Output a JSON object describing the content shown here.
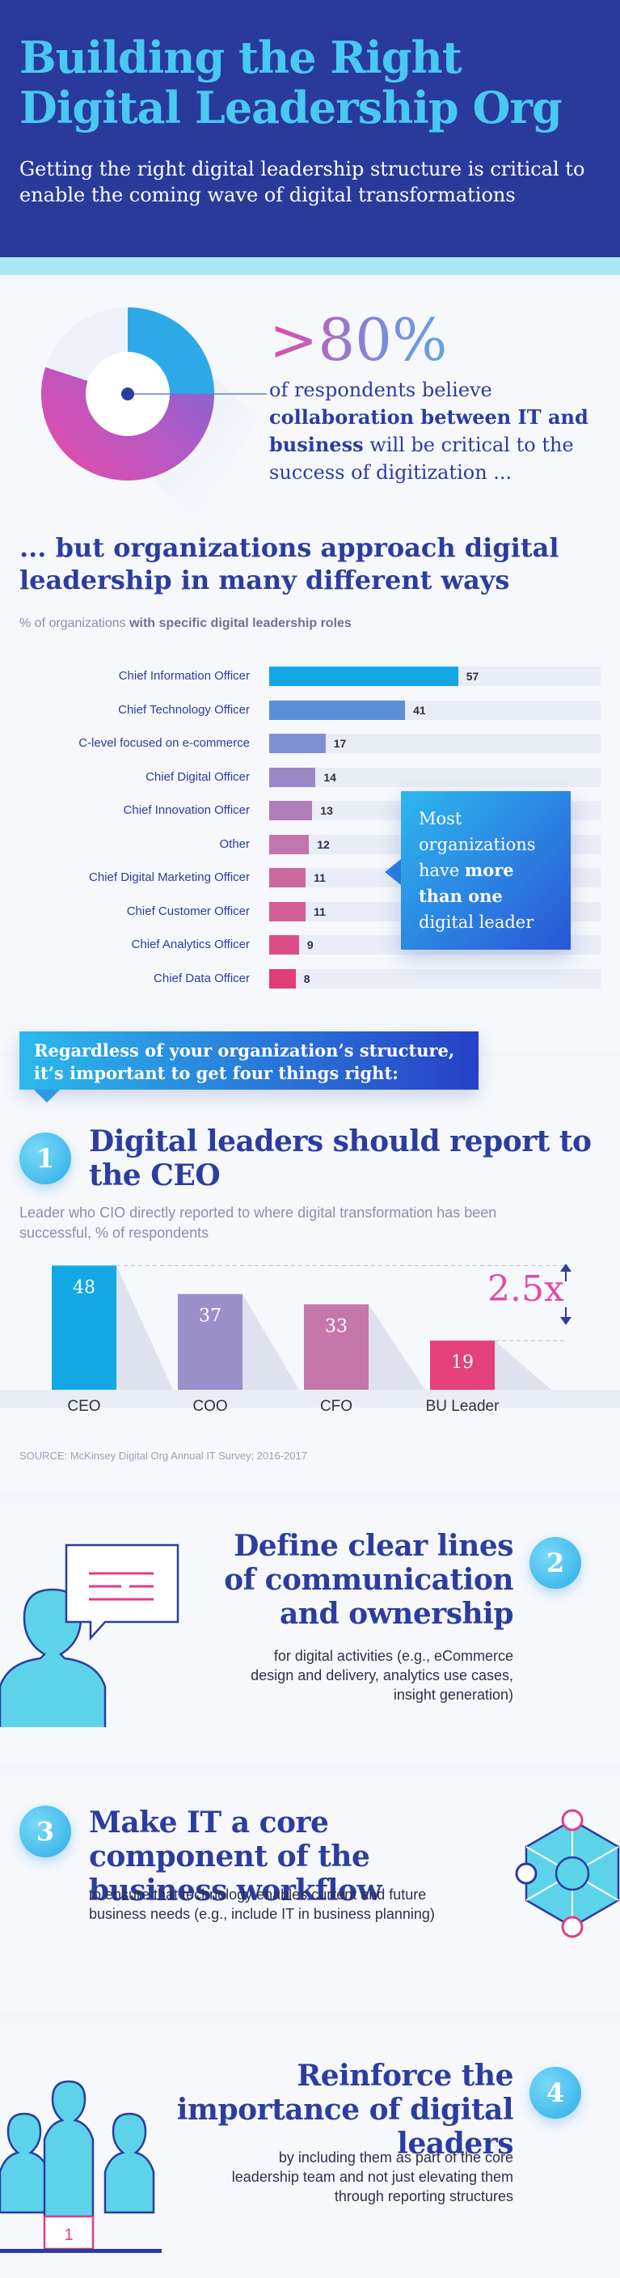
{
  "header": {
    "title_line1": "Building the Right",
    "title_line2": "Digital Leadership Org",
    "subtitle": "Getting the right digital leadership structure is critical to enable the coming wave of digital transformations"
  },
  "stat": {
    "value": ">80%",
    "text_pre": "of respondents believe ",
    "text_bold": "collaboration between IT and business",
    "text_post": " will be critical to the success of digitization ...",
    "donut_fraction": 0.8
  },
  "roles": {
    "title": "... but organizations approach digital leadership in many different ways",
    "subtitle_pre": "% of organizations ",
    "subtitle_bold": "with specific digital leadership roles",
    "chart_data": {
      "type": "bar",
      "orientation": "horizontal",
      "categories": [
        "Chief Information Officer",
        "Chief Technology Officer",
        "C-level focused on e-commerce",
        "Chief Digital Officer",
        "Chief Innovation Officer",
        "Other",
        "Chief Digital Marketing Officer",
        "Chief Customer Officer",
        "Chief Analytics Officer",
        "Chief Data Officer"
      ],
      "values": [
        57,
        41,
        17,
        14,
        13,
        12,
        11,
        11,
        9,
        8
      ],
      "colors": [
        "#13a7e6",
        "#5b8fd8",
        "#7f8fd4",
        "#9b88c6",
        "#b07cb9",
        "#c276ab",
        "#cb6a9f",
        "#d25f95",
        "#dc4f86",
        "#e03d77"
      ],
      "xlim": [
        0,
        100
      ]
    },
    "callout_pre": "Most organizations have ",
    "callout_bold": "more than one",
    "callout_post": " digital leader"
  },
  "banner": "Regardless of your organization’s structure, it’s important to get four things right:",
  "step1": {
    "number": "1",
    "title": "Digital leaders should report to the CEO",
    "desc_main": "Leader who CIO directly reported to where digital transformation has been successful,",
    "desc_unit": " % of respondents",
    "chart_data": {
      "type": "bar",
      "categories": [
        "CEO",
        "COO",
        "CFO",
        "BU Leader"
      ],
      "values": [
        48,
        37,
        33,
        19
      ],
      "colors": [
        "#13a7e6",
        "#9a8fc9",
        "#c577ab",
        "#e3407c"
      ],
      "ylim": [
        0,
        50
      ],
      "annotation": "2.5x"
    },
    "source": "SOURCE: McKinsey Digital Org Annual IT Survey; 2016-2017"
  },
  "step2": {
    "number": "2",
    "title": "Define clear lines of communication and ownership",
    "desc": "for digital activities (e.g., eCommerce design and delivery, analytics use cases, insight generation)"
  },
  "step3": {
    "number": "3",
    "title": "Make IT a core component of the business workflow",
    "desc": "to ensure that technology enables current and future business needs (e.g., include IT in business planning)"
  },
  "step4": {
    "number": "4",
    "title": "Reinforce the importance of digital leaders",
    "desc": "by including them as part of the core leadership team and not just elevating them through reporting structures",
    "podium_label": "1"
  }
}
